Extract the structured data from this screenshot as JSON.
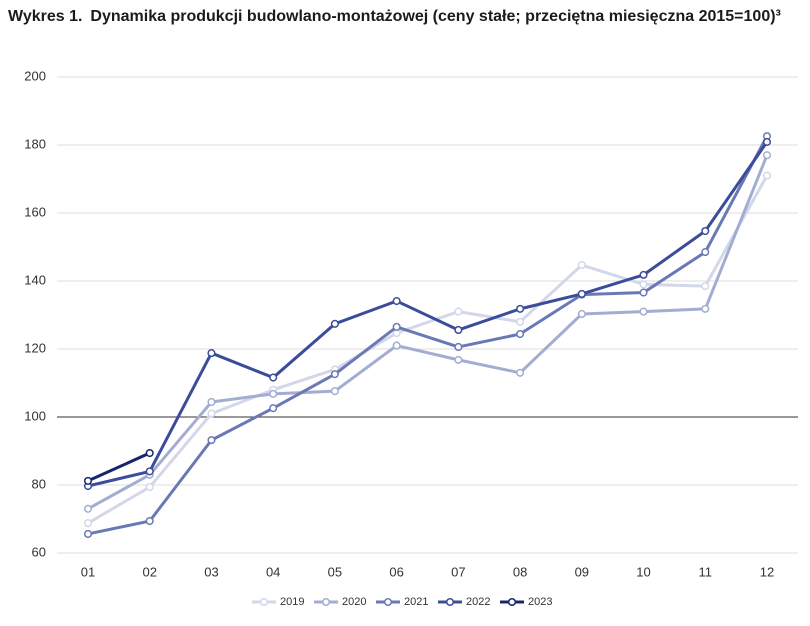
{
  "chart_data": {
    "type": "line",
    "label": "Wykres 1.",
    "title": "Dynamika produkcji budowlano-montażowej (ceny stałe; przeciętna miesięczna 2015=100)³",
    "categories": [
      "01",
      "02",
      "03",
      "04",
      "05",
      "06",
      "07",
      "08",
      "09",
      "10",
      "11",
      "12"
    ],
    "series": [
      {
        "name": "2019",
        "color": "#d3d7ea",
        "values": [
          68.8,
          79.4,
          101,
          108,
          114,
          124.7,
          131,
          128,
          144.7,
          139,
          138.5,
          171
        ]
      },
      {
        "name": "2020",
        "color": "#a3add2",
        "values": [
          73,
          83,
          104.4,
          106.8,
          107.6,
          121,
          116.8,
          113,
          130.3,
          131,
          131.8,
          177
        ]
      },
      {
        "name": "2021",
        "color": "#6a79b6",
        "values": [
          65.6,
          69.4,
          93.2,
          102.6,
          112.6,
          126.5,
          120.6,
          124.4,
          136,
          136.6,
          148.5,
          182.6
        ]
      },
      {
        "name": "2022",
        "color": "#3b4c9b",
        "values": [
          79.7,
          84,
          118.8,
          111.6,
          127.4,
          134.1,
          125.6,
          131.8,
          136.2,
          141.8,
          154.7,
          180.9
        ]
      },
      {
        "name": "2023",
        "color": "#17266b",
        "values": [
          81.2,
          89.4,
          null,
          null,
          null,
          null,
          null,
          null,
          null,
          null,
          null,
          null
        ]
      }
    ],
    "ylim": [
      60,
      200
    ],
    "yticks": [
      60,
      80,
      100,
      120,
      140,
      160,
      180,
      200
    ],
    "grid": true,
    "baseline": 100,
    "legend": "bottom"
  }
}
